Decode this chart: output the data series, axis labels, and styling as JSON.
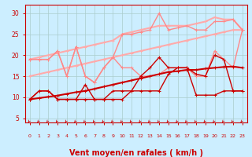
{
  "bg_color": "#cceeff",
  "grid_color": "#aacccc",
  "xlabel": "Vent moyen/en rafales ( km/h )",
  "xlabel_color": "#cc0000",
  "xlabel_fontsize": 7,
  "tick_color": "#cc0000",
  "xlim": [
    -0.5,
    23.5
  ],
  "ylim": [
    4,
    32
  ],
  "yticks": [
    5,
    10,
    15,
    20,
    25,
    30
  ],
  "xticks": [
    0,
    1,
    2,
    3,
    4,
    5,
    6,
    7,
    8,
    9,
    10,
    11,
    12,
    13,
    14,
    15,
    16,
    17,
    18,
    19,
    20,
    21,
    22,
    23
  ],
  "line_pink1_x": [
    0,
    1,
    2,
    3,
    4,
    5,
    6,
    7,
    8,
    9,
    10,
    11,
    12,
    13,
    14,
    15,
    16,
    17,
    18,
    19,
    20,
    21,
    22,
    23
  ],
  "line_pink1_y": [
    19,
    19,
    19,
    21,
    15,
    22,
    15,
    13.5,
    17,
    19.5,
    17,
    17,
    15,
    15,
    15.5,
    17,
    17,
    17,
    15,
    15,
    21,
    19,
    17,
    26
  ],
  "line_pink1_color": "#ff8888",
  "line_pink1_lw": 1.0,
  "line_pink2_x": [
    0,
    1,
    2,
    3,
    4,
    5,
    6,
    7,
    8,
    9,
    10,
    11,
    12,
    13,
    14,
    15,
    16,
    17,
    18,
    19,
    20,
    21,
    22,
    23
  ],
  "line_pink2_y": [
    19,
    19,
    19,
    21,
    15,
    22,
    15,
    13.5,
    17,
    19.5,
    25,
    25,
    25.5,
    26,
    30,
    26,
    26.5,
    27,
    26,
    26,
    28,
    28,
    28.5,
    26
  ],
  "line_pink2_color": "#ff8888",
  "line_pink2_lw": 1.0,
  "line_pink3_x": [
    0,
    1,
    2,
    3,
    4,
    5,
    6,
    7,
    8,
    9,
    10,
    11,
    12,
    13,
    14,
    15,
    16,
    17,
    18,
    19,
    20,
    21,
    22,
    23
  ],
  "line_pink3_y": [
    15,
    15.5,
    16,
    16.5,
    17,
    17.5,
    18,
    18.5,
    19,
    19.5,
    20,
    20.5,
    21,
    21.5,
    22,
    22.5,
    23,
    23.5,
    24,
    24.5,
    25,
    25.5,
    26,
    26
  ],
  "line_pink3_color": "#ffaaaa",
  "line_pink3_lw": 1.5,
  "line_pink4_x": [
    0,
    1,
    2,
    3,
    4,
    5,
    6,
    7,
    8,
    9,
    10,
    11,
    12,
    13,
    14,
    15,
    16,
    17,
    18,
    19,
    20,
    21,
    22,
    23
  ],
  "line_pink4_y": [
    19,
    19.5,
    20,
    20.5,
    21,
    21.5,
    22,
    22.5,
    23,
    23.5,
    25,
    25.5,
    26,
    26.5,
    27,
    27,
    27,
    27,
    27.5,
    28,
    29,
    28.5,
    28.5,
    26
  ],
  "line_pink4_color": "#ffaaaa",
  "line_pink4_lw": 1.5,
  "line_dark1_x": [
    0,
    1,
    2,
    3,
    4,
    5,
    6,
    7,
    8,
    9,
    10,
    11,
    12,
    13,
    14,
    15,
    16,
    17,
    18,
    19,
    20,
    21,
    22,
    23
  ],
  "line_dark1_y": [
    9.5,
    11.5,
    11.5,
    9.5,
    9.5,
    9.5,
    13,
    9.5,
    9.5,
    9.5,
    9.5,
    11.5,
    15,
    17,
    19.5,
    17,
    17,
    17,
    15.5,
    15,
    20,
    19,
    11.5,
    11.5
  ],
  "line_dark1_color": "#cc0000",
  "line_dark1_lw": 1.0,
  "line_dark2_x": [
    0,
    1,
    2,
    3,
    4,
    5,
    6,
    7,
    8,
    9,
    10,
    11,
    12,
    13,
    14,
    15,
    16,
    17,
    18,
    19,
    20,
    21,
    22,
    23
  ],
  "line_dark2_y": [
    9.5,
    11.5,
    11.5,
    9.5,
    9.5,
    9.5,
    9.5,
    9.5,
    9.5,
    11.5,
    11.5,
    11.5,
    11.5,
    11.5,
    11.5,
    15.5,
    17,
    17,
    10.5,
    10.5,
    10.5,
    11.5,
    11.5,
    11.5
  ],
  "line_dark2_color": "#cc0000",
  "line_dark2_lw": 1.0,
  "line_dark3_x": [
    0,
    1,
    2,
    3,
    4,
    5,
    6,
    7,
    8,
    9,
    10,
    11,
    12,
    13,
    14,
    15,
    16,
    17,
    18,
    19,
    20,
    21,
    22,
    23
  ],
  "line_dark3_y": [
    9.5,
    9.8,
    10.1,
    10.4,
    10.8,
    11.2,
    11.5,
    12,
    12.5,
    13,
    13.5,
    14,
    14.5,
    15,
    15.5,
    16,
    16.2,
    16.5,
    16.5,
    16.8,
    17,
    17.2,
    17.3,
    17
  ],
  "line_dark3_color": "#cc0000",
  "line_dark3_lw": 1.5
}
